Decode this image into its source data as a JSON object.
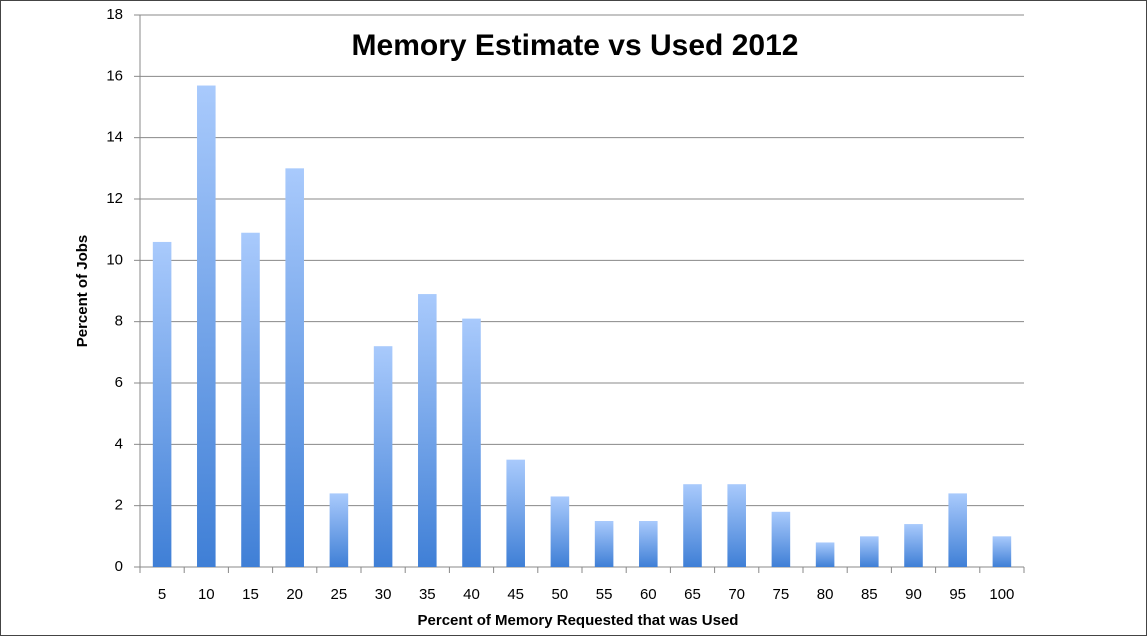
{
  "chart_data": {
    "type": "bar",
    "title": "Memory Estimate vs Used 2012",
    "x_label": "Percent of Memory Requested that was Used",
    "y_label": "Percent of Jobs",
    "categories": [
      "5",
      "10",
      "15",
      "20",
      "25",
      "30",
      "35",
      "40",
      "45",
      "50",
      "55",
      "60",
      "65",
      "70",
      "75",
      "80",
      "85",
      "90",
      "95",
      "100"
    ],
    "values": [
      10.6,
      15.7,
      10.9,
      13.0,
      2.4,
      7.2,
      8.9,
      8.1,
      3.5,
      2.3,
      1.5,
      1.5,
      2.7,
      2.7,
      1.8,
      0.8,
      1.0,
      1.4,
      2.4,
      1.0
    ],
    "color": "#3f7fd6",
    "ylim": [
      0,
      18
    ],
    "yticks": [
      0,
      2,
      4,
      6,
      8,
      10,
      12,
      14,
      16,
      18
    ],
    "grid": true
  }
}
